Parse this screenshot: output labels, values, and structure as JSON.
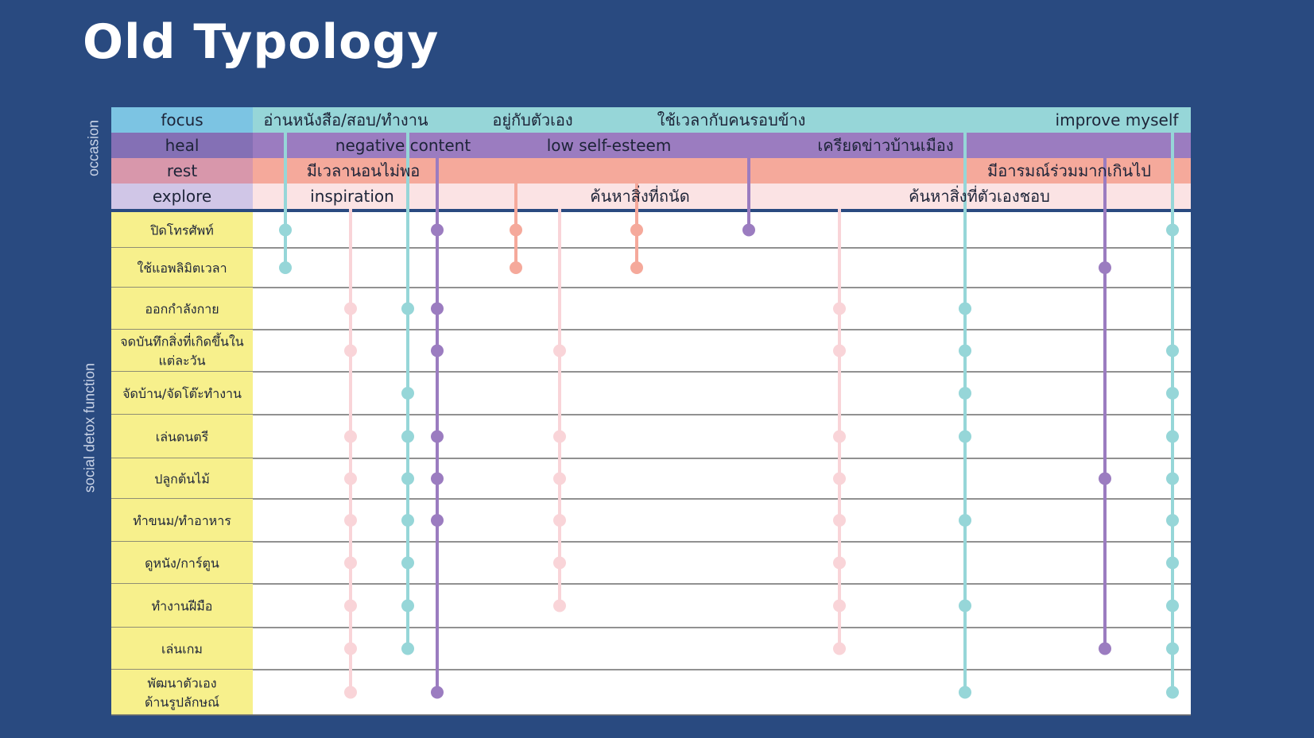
{
  "title": "Old Typology",
  "side_labels": {
    "occasion": "occasion",
    "function": "social detox function"
  },
  "colors": {
    "background": "#294a80",
    "focus": "#96d6d8",
    "heal": "#9b7cc0",
    "rest": "#f5a99b",
    "explore": "#fbe3e4",
    "activity_bg": "#f7f08c",
    "focus_header": "#7cc4e3",
    "heal_header": "#8470b5",
    "rest_header": "#d897ab",
    "explore_header": "#d0c6e7"
  },
  "categories": [
    {
      "id": "focus",
      "label": "focus"
    },
    {
      "id": "heal",
      "label": "heal"
    },
    {
      "id": "rest",
      "label": "rest"
    },
    {
      "id": "explore",
      "label": "explore"
    }
  ],
  "occasions": [
    {
      "id": "o1",
      "category": "focus",
      "label": "อ่านหนังสือ/สอบ/ทำงาน"
    },
    {
      "id": "o2",
      "category": "focus",
      "label": "อยู่กับตัวเอง"
    },
    {
      "id": "o3",
      "category": "focus",
      "label": "ใช้เวลากับคนรอบข้าง"
    },
    {
      "id": "o4",
      "category": "focus",
      "label": "improve myself"
    },
    {
      "id": "o5",
      "category": "heal",
      "label": "negative content"
    },
    {
      "id": "o6",
      "category": "heal",
      "label": "low self-esteem"
    },
    {
      "id": "o7",
      "category": "heal",
      "label": "เครียดข่าวบ้านเมือง"
    },
    {
      "id": "o8",
      "category": "rest",
      "label": "มีเวลานอนไม่พอ"
    },
    {
      "id": "o9",
      "category": "rest",
      "label": "มีอารมณ์ร่วมมากเกินไป"
    },
    {
      "id": "o10",
      "category": "explore",
      "label": "inspiration"
    },
    {
      "id": "o11",
      "category": "explore",
      "label": "ค้นหาสิ่งที่ถนัด"
    },
    {
      "id": "o12",
      "category": "explore",
      "label": "ค้นหาสิ่งที่ตัวเองชอบ"
    }
  ],
  "activities": [
    [
      "ปิดโทรศัพท์"
    ],
    [
      "ใช้แอพลิมิตเวลา"
    ],
    [
      "ออกกำลังกาย"
    ],
    [
      "จดบันทึกสิ่งที่เกิดขึ้นใน",
      "แต่ละวัน"
    ],
    [
      "จัดบ้าน/จัดโต๊ะทำงาน"
    ],
    [
      "เล่นดนตรี"
    ],
    [
      "ปลูกต้นไม้"
    ],
    [
      "ทำขนม/ทำอาหาร"
    ],
    [
      "ดูหนัง/การ์ตูน"
    ],
    [
      "ทำงานฝีมือ"
    ],
    [
      "เล่นเกม"
    ],
    [
      "พัฒนาตัวเอง",
      "ด้านรูปลักษณ์"
    ]
  ],
  "links": [
    {
      "category": "focus",
      "activities": [
        1,
        2
      ]
    },
    {
      "category": "rest",
      "activities": [
        1,
        2
      ]
    },
    {
      "category": "heal",
      "activities": [
        1
      ]
    },
    {
      "category": "focus",
      "activities": [
        1,
        4,
        5,
        6,
        7,
        8,
        9,
        10,
        11,
        12
      ]
    },
    {
      "category": "heal",
      "activities": [
        1,
        3,
        4,
        6,
        7,
        8,
        12
      ]
    },
    {
      "category": "explore",
      "activities": [
        4,
        6,
        7,
        8,
        9,
        10
      ]
    },
    {
      "category": "explore",
      "activities": [
        3,
        4,
        6,
        7,
        8,
        9,
        10,
        11
      ]
    },
    {
      "category": "focus",
      "activities": [
        3,
        5,
        6,
        7,
        8,
        9,
        10,
        11
      ]
    },
    {
      "category": "heal",
      "activities": [
        2,
        7,
        11
      ]
    },
    {
      "category": "explore",
      "activities": [
        3,
        4,
        6,
        7,
        8,
        9,
        10,
        11,
        12
      ]
    },
    {
      "category": "rest",
      "activities": [
        1,
        2
      ]
    },
    {
      "category": "focus",
      "activities": [
        3,
        4,
        5,
        6,
        8,
        10,
        12
      ]
    }
  ]
}
